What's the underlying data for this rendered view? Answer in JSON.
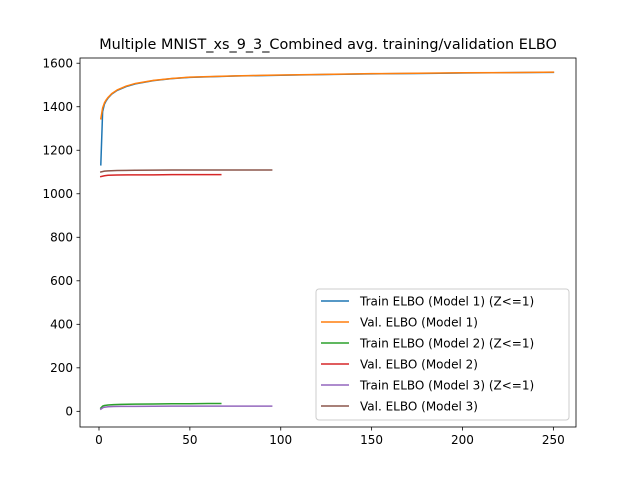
{
  "chart_data": {
    "type": "line",
    "title": "Multiple MNIST_xs_9_3_Combined avg. training/validation ELBO",
    "xlabel": "",
    "ylabel": "",
    "xlim": [
      -10.45,
      262.45
    ],
    "ylim": [
      -72,
      1624
    ],
    "xticks": [
      0,
      50,
      100,
      150,
      200,
      250
    ],
    "yticks": [
      0,
      200,
      400,
      600,
      800,
      1000,
      1200,
      1400,
      1600
    ],
    "grid": false,
    "legend_position": "lower-right",
    "series": [
      {
        "name": "Train ELBO (Model 1) (Z<=1)",
        "color": "#1f77b4",
        "x": [
          1,
          2,
          3,
          4,
          5,
          7,
          10,
          15,
          20,
          30,
          40,
          50,
          75,
          100,
          125,
          150,
          175,
          200,
          225,
          250
        ],
        "y": [
          1133,
          1378,
          1412,
          1428,
          1440,
          1458,
          1475,
          1493,
          1505,
          1520,
          1529,
          1535,
          1541,
          1545,
          1548,
          1551,
          1553,
          1555,
          1557,
          1558
        ]
      },
      {
        "name": "Val. ELBO (Model 1)",
        "color": "#ff7f0e",
        "x": [
          1,
          2,
          3,
          4,
          5,
          7,
          10,
          15,
          20,
          30,
          40,
          50,
          75,
          100,
          125,
          150,
          175,
          200,
          225,
          250
        ],
        "y": [
          1345,
          1395,
          1418,
          1432,
          1443,
          1460,
          1477,
          1495,
          1507,
          1521,
          1530,
          1536,
          1542,
          1546,
          1549,
          1552,
          1554,
          1556,
          1557,
          1559
        ]
      },
      {
        "name": "Train ELBO (Model 2) (Z<=1)",
        "color": "#2ca02c",
        "x": [
          1,
          2,
          3,
          5,
          8,
          12,
          20,
          30,
          40,
          50,
          60,
          67
        ],
        "y": [
          15,
          24,
          27,
          29,
          31,
          32,
          33,
          34,
          35,
          35,
          36,
          36
        ]
      },
      {
        "name": "Val. ELBO (Model 2)",
        "color": "#d62728",
        "x": [
          1,
          3,
          5,
          10,
          20,
          30,
          40,
          50,
          60,
          67
        ],
        "y": [
          1079,
          1083,
          1085,
          1086,
          1087,
          1087,
          1088,
          1088,
          1088,
          1088
        ]
      },
      {
        "name": "Train ELBO (Model 3) (Z<=1)",
        "color": "#9467bd",
        "x": [
          1,
          2,
          3,
          5,
          8,
          12,
          20,
          40,
          60,
          80,
          95
        ],
        "y": [
          10,
          16,
          19,
          21,
          22,
          23,
          23,
          24,
          24,
          24,
          24
        ]
      },
      {
        "name": "Val. ELBO (Model 3)",
        "color": "#8c564b",
        "x": [
          1,
          3,
          5,
          10,
          20,
          40,
          60,
          80,
          95
        ],
        "y": [
          1100,
          1104,
          1105,
          1107,
          1108,
          1109,
          1109,
          1109,
          1109
        ]
      }
    ]
  }
}
